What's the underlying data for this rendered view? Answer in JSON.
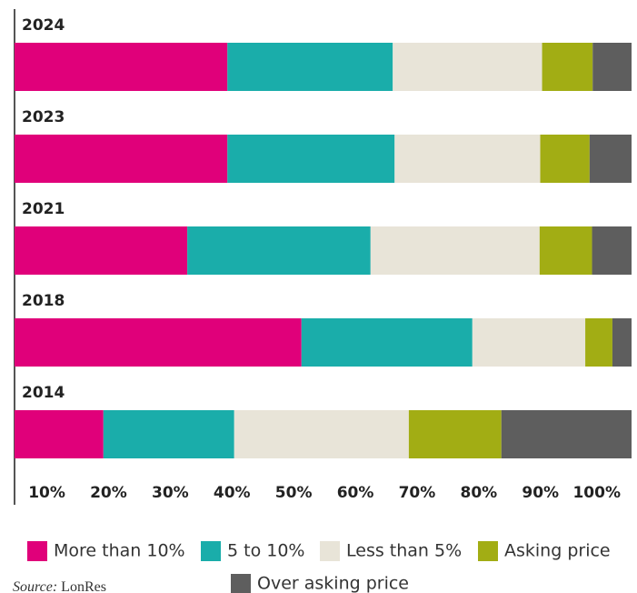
{
  "chart_data": {
    "type": "stacked-bar-horizontal",
    "categories": [
      "2024",
      "2023",
      "2021",
      "2018",
      "2014"
    ],
    "series": [
      {
        "name": "More than 10%",
        "color": "#e0007a",
        "values": [
          34.5,
          34.5,
          28.0,
          46.5,
          14.4
        ]
      },
      {
        "name": "5 to 10%",
        "color": "#1aadaa",
        "values": [
          26.8,
          27.1,
          29.7,
          27.7,
          21.2
        ]
      },
      {
        "name": "Less than 5%",
        "color": "#e8e4d8",
        "values": [
          24.2,
          23.6,
          27.4,
          18.3,
          28.3
        ]
      },
      {
        "name": "Asking price",
        "color": "#a2ad14",
        "values": [
          8.2,
          8.0,
          8.5,
          4.4,
          15.0
        ]
      },
      {
        "name": "Over asking price",
        "color": "#5e5e5e",
        "values": [
          6.3,
          6.8,
          6.4,
          3.1,
          21.1
        ]
      }
    ],
    "xlim": [
      0,
      100
    ],
    "xticks": [
      {
        "value": 10,
        "label": "10%"
      },
      {
        "value": 20,
        "label": "20%"
      },
      {
        "value": 30,
        "label": "30%"
      },
      {
        "value": 40,
        "label": "40%"
      },
      {
        "value": 50,
        "label": "50%"
      },
      {
        "value": 60,
        "label": "60%"
      },
      {
        "value": 70,
        "label": "70%"
      },
      {
        "value": 80,
        "label": "80%"
      },
      {
        "value": 90,
        "label": "90%"
      },
      {
        "value": 100,
        "label": "100%"
      }
    ],
    "grid": false,
    "legend": "bottom",
    "source_label": "Source:",
    "source": "LonRes"
  }
}
